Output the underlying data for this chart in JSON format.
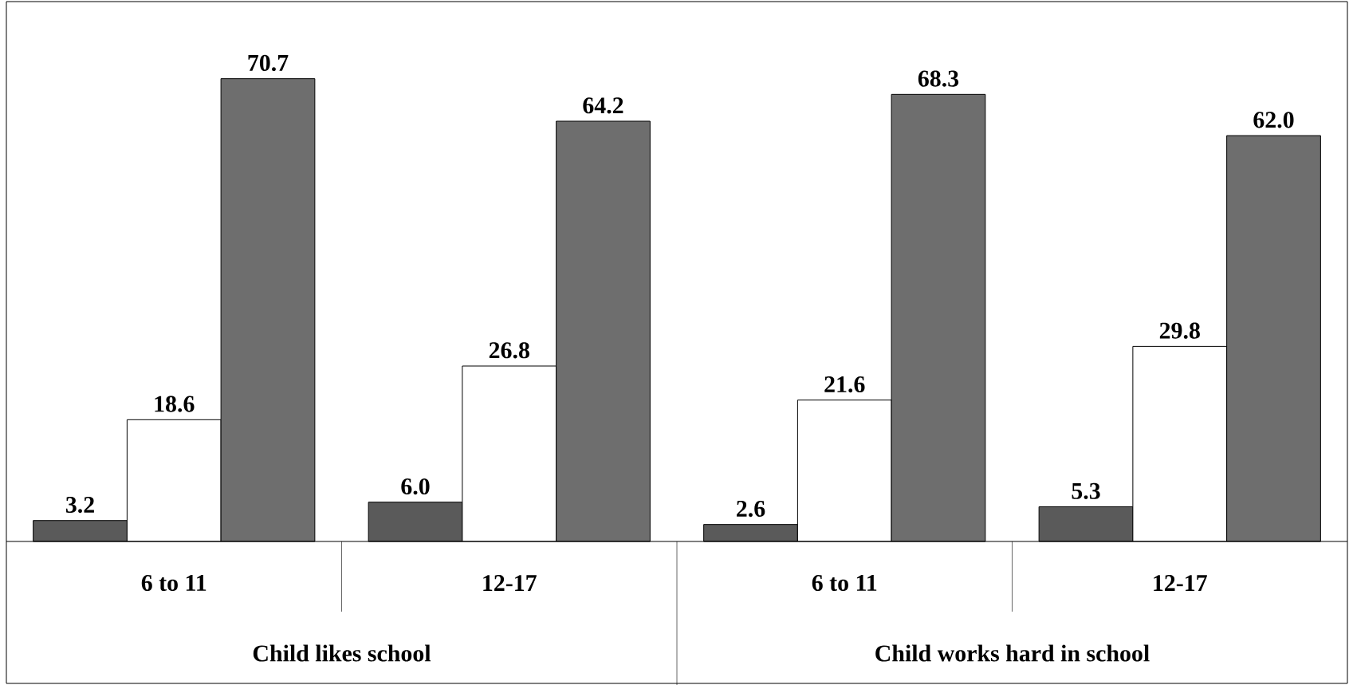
{
  "chart_data": {
    "type": "bar",
    "categories": [
      "6 to 11",
      "12-17",
      "6 to 11",
      "12-17"
    ],
    "series": [
      {
        "color": "#5a5a5a",
        "values": [
          3.2,
          6.0,
          2.6,
          5.3
        ],
        "value_labels": [
          "3.2",
          "6.0",
          "2.6",
          "5.3"
        ]
      },
      {
        "color": "#ffffff",
        "values": [
          18.6,
          26.8,
          21.6,
          29.8
        ],
        "value_labels": [
          "18.6",
          "26.8",
          "21.6",
          "29.8"
        ]
      },
      {
        "color": "#6e6e6e",
        "values": [
          70.7,
          64.2,
          68.3,
          62.0
        ],
        "value_labels": [
          "70.7",
          "64.2",
          "68.3",
          "62.0"
        ]
      }
    ],
    "annotations": [
      "Child likes school",
      "Child works hard in school"
    ]
  }
}
